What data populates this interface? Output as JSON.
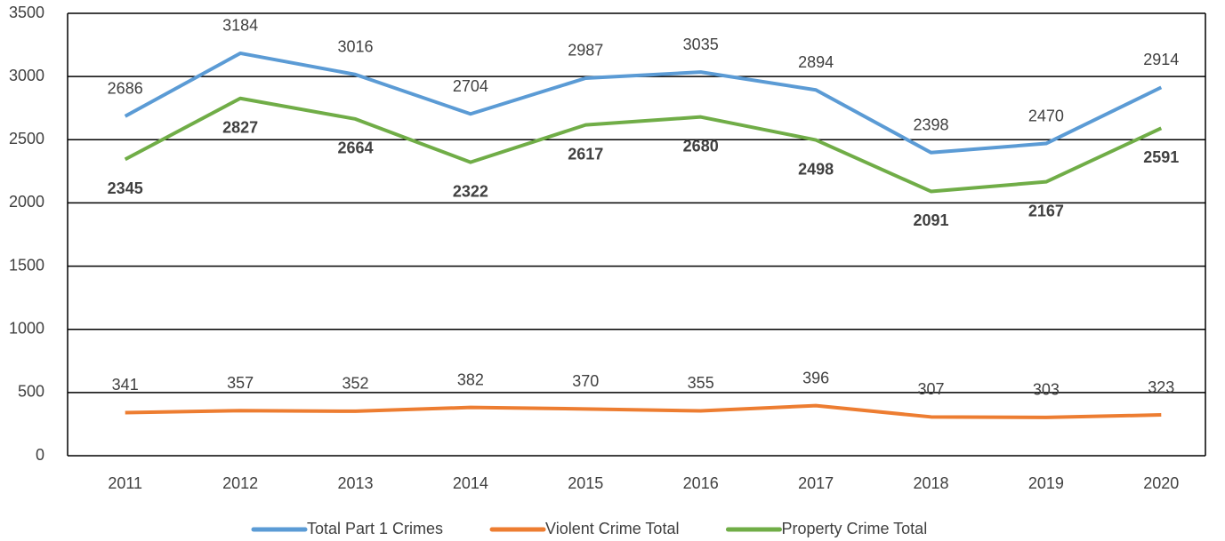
{
  "chart_data": {
    "type": "line",
    "categories": [
      "2011",
      "2012",
      "2013",
      "2014",
      "2015",
      "2016",
      "2017",
      "2018",
      "2019",
      "2020"
    ],
    "series": [
      {
        "name": "Total Part 1 Crimes",
        "color": "#5b9bd5",
        "values": [
          2686,
          3184,
          3016,
          2704,
          2987,
          3035,
          2894,
          2398,
          2470,
          2914
        ]
      },
      {
        "name": "Violent Crime Total",
        "color": "#ed7d31",
        "values": [
          341,
          357,
          352,
          382,
          370,
          355,
          396,
          307,
          303,
          323
        ]
      },
      {
        "name": "Property Crime Total",
        "color": "#70ad47",
        "values": [
          2345,
          2827,
          2664,
          2322,
          2617,
          2680,
          2498,
          2091,
          2167,
          2591
        ]
      }
    ],
    "ylim": [
      0,
      3500
    ],
    "yticks": [
      0,
      500,
      1000,
      1500,
      2000,
      2500,
      3000,
      3500
    ],
    "grid": true,
    "legend": "bottom"
  }
}
